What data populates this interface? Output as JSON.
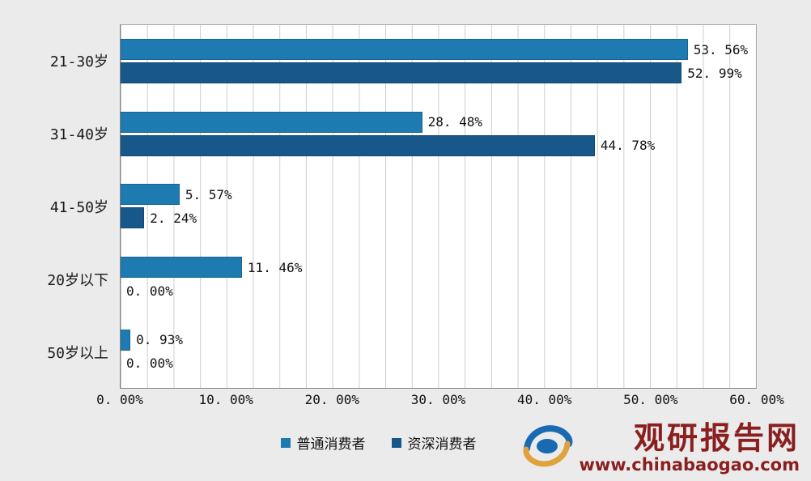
{
  "chart_data": {
    "type": "bar",
    "orientation": "horizontal",
    "categories": [
      "21-30岁",
      "31-40岁",
      "41-50岁",
      "20岁以下",
      "50岁以上"
    ],
    "series": [
      {
        "name": "普通消费者",
        "color": "#1e7bb1",
        "values": [
          53.56,
          28.48,
          5.57,
          11.46,
          0.93
        ],
        "labels": [
          "53. 56%",
          "28. 48%",
          "5. 57%",
          "11. 46%",
          "0. 93%"
        ]
      },
      {
        "name": "资深消费者",
        "color": "#17578a",
        "values": [
          52.99,
          44.78,
          2.24,
          0,
          0
        ],
        "labels": [
          "52. 99%",
          "44. 78%",
          "2. 24%",
          "0. 00%",
          "0. 00%"
        ]
      }
    ],
    "xlim": [
      0,
      60
    ],
    "x_tick_labels": [
      "0. 00%",
      "10. 00%",
      "20. 00%",
      "30. 00%",
      "40. 00%",
      "50. 00%",
      "60. 00%"
    ],
    "grid": {
      "minor_step_percent": 2.5,
      "line_color": "#cdcdcd"
    },
    "legend_position": "bottom-center",
    "plot_background": "#ffffff",
    "page_background": "#ebebeb"
  },
  "branding": {
    "site_name": "观研报告网",
    "site_url": "www.chinabaogao.com",
    "text_color": "#8a1f1f",
    "logo_blue": "#1a6ab3",
    "logo_gold": "#e0a23c"
  }
}
